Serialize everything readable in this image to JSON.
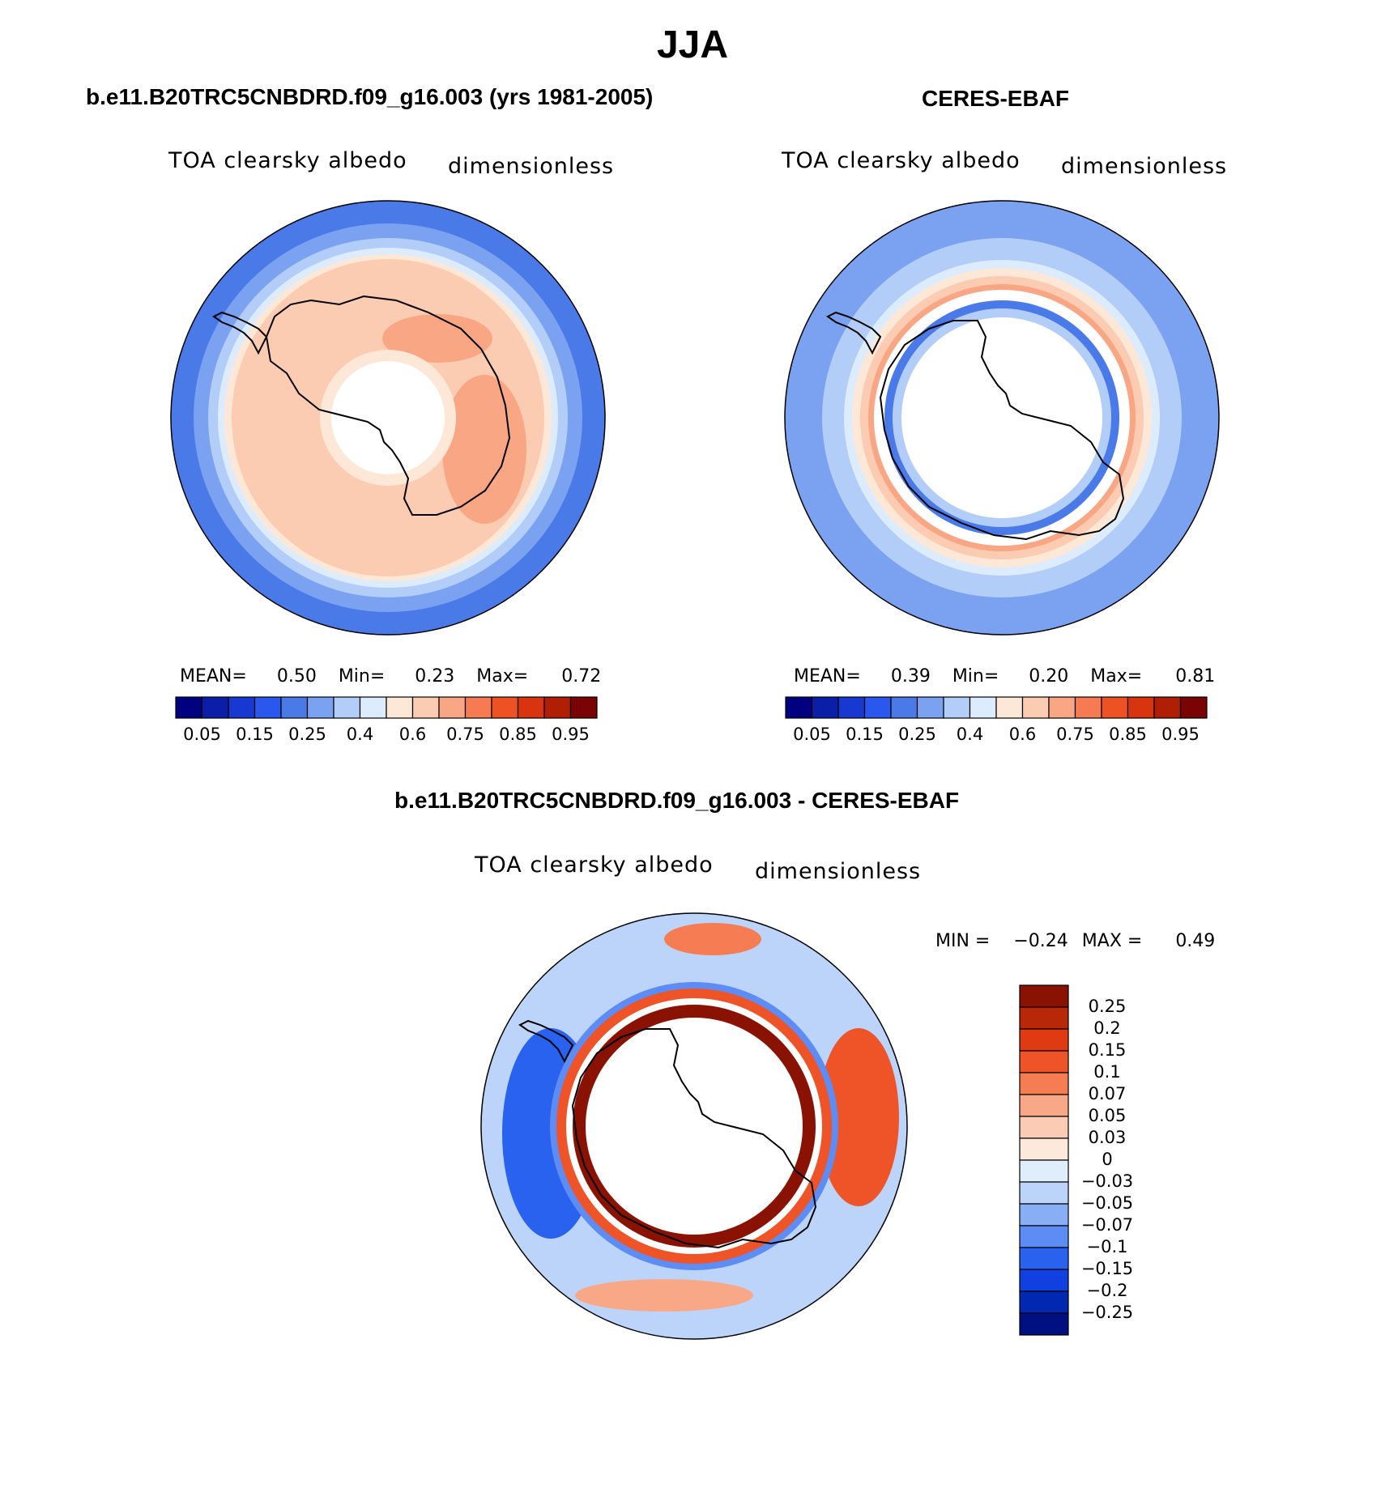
{
  "season": "JJA",
  "colors": {
    "seq": [
      "#000080",
      "#0a1ea8",
      "#1838d2",
      "#2a58ee",
      "#4a7ae8",
      "#7aa2f0",
      "#b2cdf8",
      "#dcecfc",
      "#fde8d8",
      "#fbcbb2",
      "#f9a685",
      "#f67b52",
      "#ee5224",
      "#d93410",
      "#b01e06",
      "#7a0403"
    ],
    "diff": [
      "#001080",
      "#0028b0",
      "#1040e0",
      "#2a62f0",
      "#5c8cf4",
      "#88aef6",
      "#bcd4fa",
      "#e0eefc",
      "#fde9dc",
      "#fbcbb3",
      "#f8a887",
      "#f57c53",
      "#ee5428",
      "#e03a12",
      "#b82808",
      "#8a1202"
    ]
  },
  "panels": [
    {
      "id": "model",
      "title": "b.e11.B20TRC5CNBDRD.f09_g16.003 (yrs 1981-2005)",
      "variable": "TOA clearsky albedo",
      "units": "dimensionless",
      "stats": {
        "mean_label": "MEAN=",
        "mean": "0.50",
        "min_label": "Min=",
        "min": "0.23",
        "max_label": "Max=",
        "max": "0.72"
      },
      "colorbar_labels": [
        "0.05",
        "0.15",
        "0.25",
        "0.4",
        "0.6",
        "0.75",
        "0.85",
        "0.95"
      ]
    },
    {
      "id": "obs",
      "title": "CERES-EBAF",
      "variable": "TOA clearsky albedo",
      "units": "dimensionless",
      "stats": {
        "mean_label": "MEAN=",
        "mean": "0.39",
        "min_label": "Min=",
        "min": "0.20",
        "max_label": "Max=",
        "max": "0.81"
      },
      "colorbar_labels": [
        "0.05",
        "0.15",
        "0.25",
        "0.4",
        "0.6",
        "0.75",
        "0.85",
        "0.95"
      ]
    },
    {
      "id": "diff",
      "title": "b.e11.B20TRC5CNBDRD.f09_g16.003 - CERES-EBAF",
      "variable": "TOA clearsky albedo",
      "units": "dimensionless",
      "stats": {
        "min_label": "MIN =",
        "min": "−0.24",
        "max_label": "MAX =",
        "max": "0.49"
      },
      "colorbar_labels": [
        "0.25",
        "0.2",
        "0.15",
        "0.1",
        "0.07",
        "0.05",
        "0.03",
        "0",
        "−0.03",
        "−0.05",
        "−0.07",
        "−0.1",
        "−0.15",
        "−0.2",
        "−0.25"
      ]
    }
  ]
}
